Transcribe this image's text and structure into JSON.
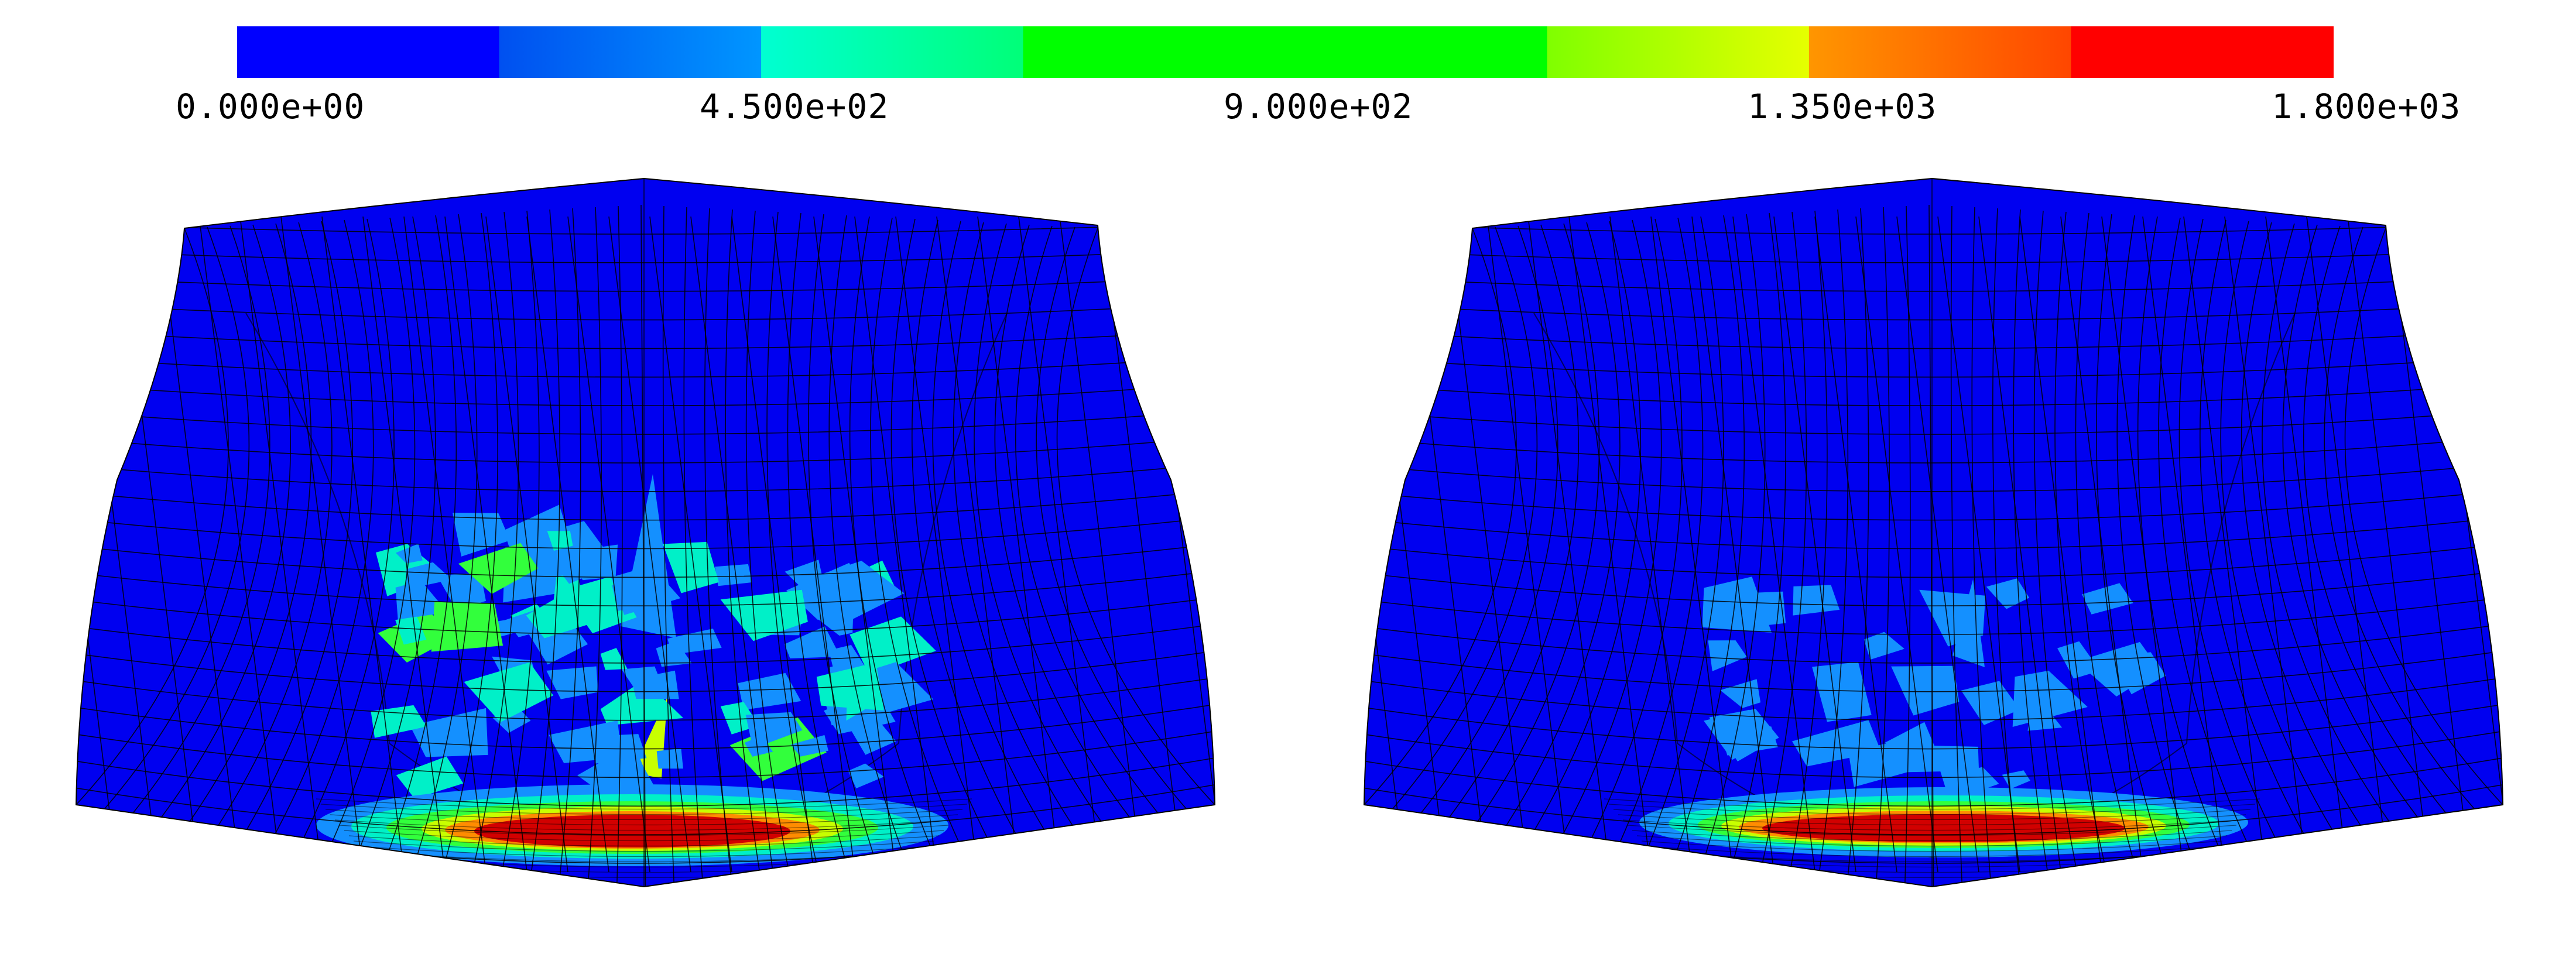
{
  "colorbar": {
    "labels": [
      "0.000e+00",
      "4.500e+02",
      "9.000e+02",
      "1.350e+03",
      "1.800e+03"
    ],
    "min": 0,
    "max": 1800,
    "bands": [
      {
        "from": "#0000ff",
        "to": "#0000ff"
      },
      {
        "from": "#0050f0",
        "to": "#0096ff"
      },
      {
        "from": "#00ffd2",
        "to": "#00ff78"
      },
      {
        "from": "#00ff00",
        "to": "#00ff00"
      },
      {
        "from": "#00ff00",
        "to": "#00ff00"
      },
      {
        "from": "#7fff00",
        "to": "#e6ff00"
      },
      {
        "from": "#ff9600",
        "to": "#ff4600"
      },
      {
        "from": "#ff0000",
        "to": "#ff0000"
      }
    ]
  },
  "colors": {
    "base": "#0000f0",
    "light_blue": "#1490ff",
    "cyan": "#00f0c8",
    "green": "#32ff3c",
    "yellow": "#c8ff00",
    "orange": "#ff8c00",
    "red": "#d20000",
    "mesh": "#000000"
  },
  "panels": [
    {
      "name": "left",
      "hotspot_intensity": "high"
    },
    {
      "name": "right",
      "hotspot_intensity": "low"
    }
  ]
}
